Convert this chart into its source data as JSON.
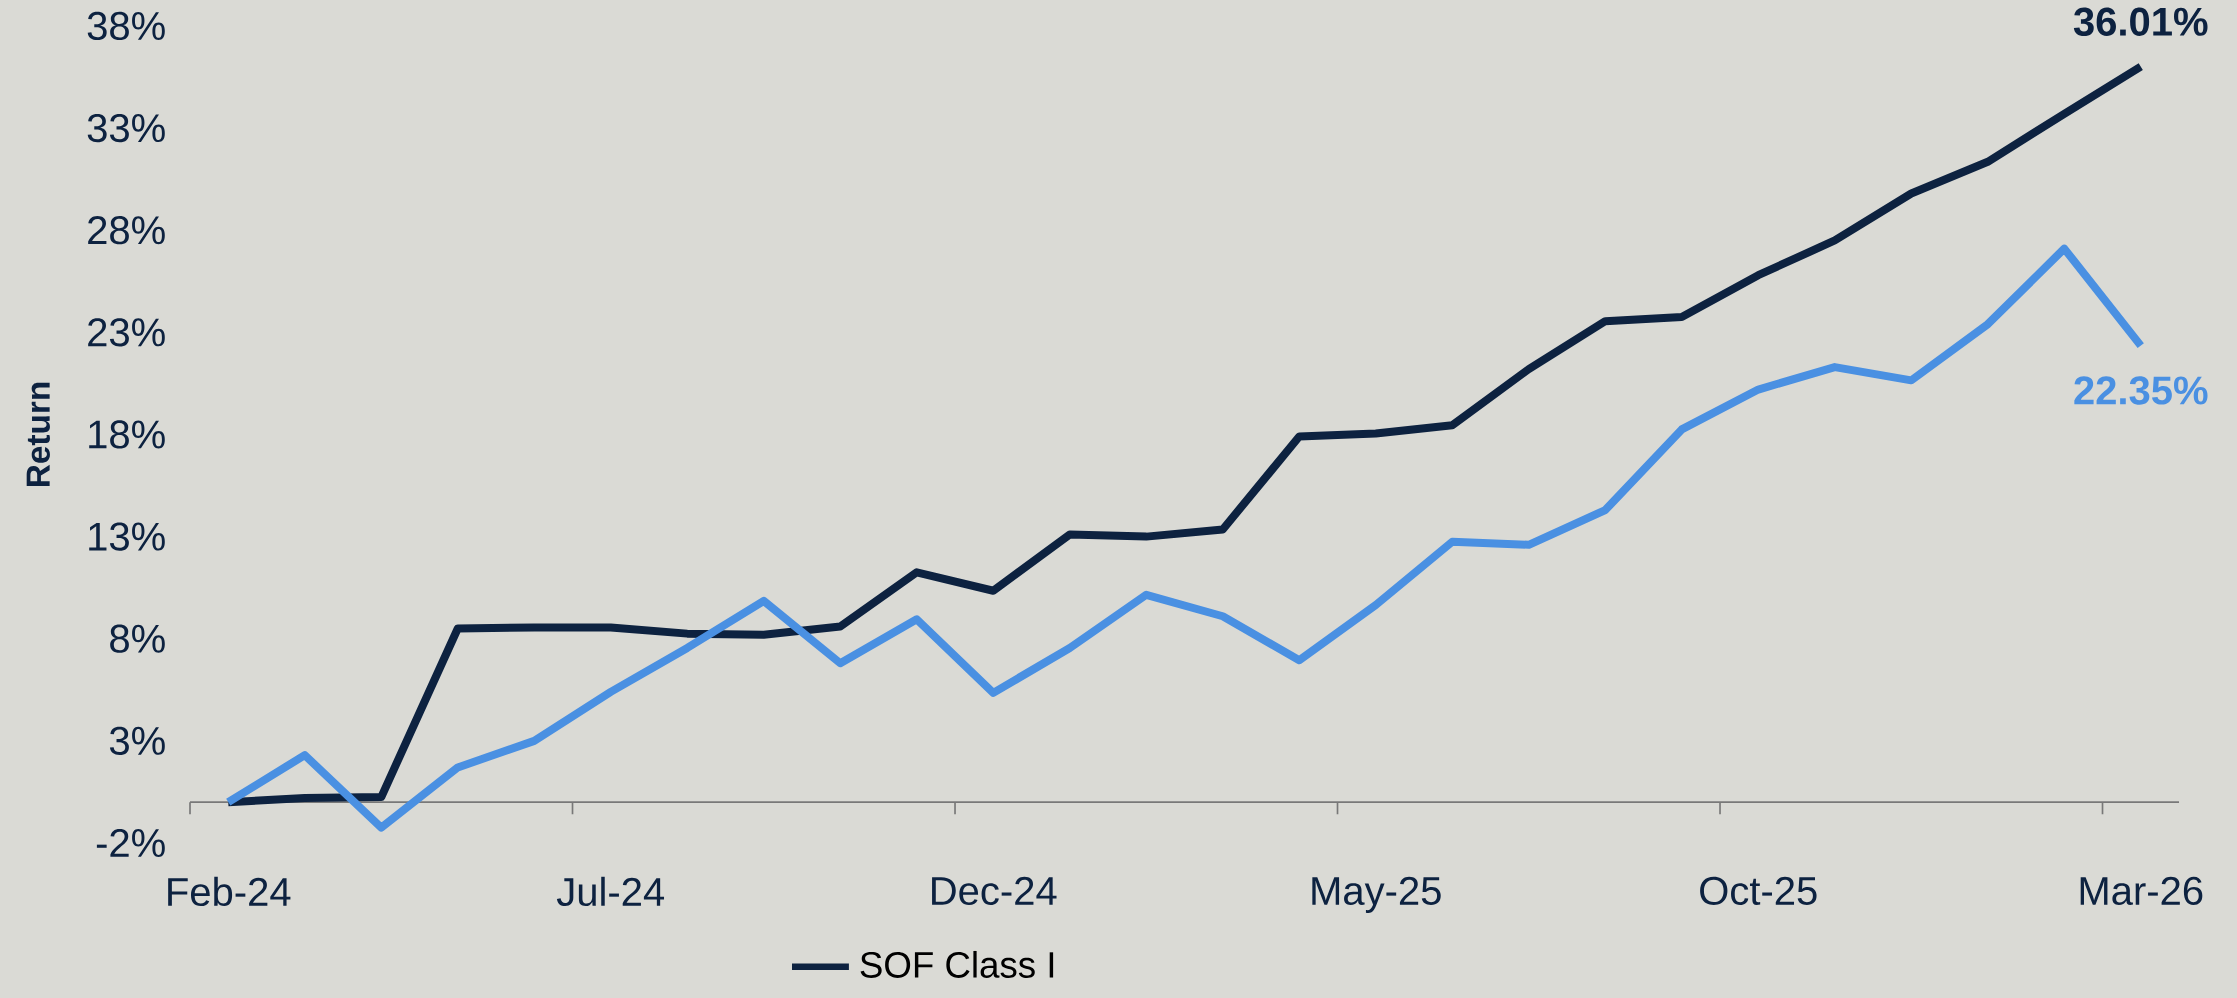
{
  "chart_data": {
    "type": "line",
    "ylabel": "Return",
    "categories": [
      "Feb-24",
      null,
      null,
      null,
      null,
      "Jul-24",
      null,
      null,
      null,
      null,
      "Dec-24",
      null,
      null,
      null,
      null,
      "May-25",
      null,
      null,
      null,
      null,
      "Oct-25",
      null,
      null,
      null,
      null,
      "Mar-26"
    ],
    "series": [
      {
        "name": "SOF Class I",
        "color": "#0d2240",
        "values": [
          0,
          0.2,
          0.25,
          8.5,
          8.55,
          8.55,
          8.25,
          8.2,
          8.6,
          11.25,
          10.35,
          13.1,
          13.0,
          13.35,
          17.9,
          18.05,
          18.45,
          21.2,
          23.55,
          23.75,
          25.8,
          27.5,
          29.8,
          31.35,
          33.7,
          36.01
        ],
        "value_labels": [
          null,
          null,
          null,
          null,
          null,
          null,
          null,
          null,
          null,
          null,
          null,
          null,
          null,
          null,
          null,
          null,
          null,
          null,
          null,
          null,
          null,
          null,
          null,
          null,
          null,
          "36.01%"
        ]
      },
      {
        "color": "#4a90e2",
        "values": [
          0,
          2.3,
          -1.25,
          1.7,
          3.0,
          5.4,
          7.55,
          9.85,
          6.8,
          8.95,
          5.35,
          7.55,
          10.15,
          9.1,
          6.95,
          9.65,
          12.75,
          12.6,
          14.3,
          18.25,
          20.2,
          21.3,
          20.65,
          23.4,
          27.1,
          22.35
        ],
        "value_labels": [
          null,
          null,
          null,
          null,
          null,
          null,
          null,
          null,
          null,
          null,
          null,
          null,
          null,
          null,
          null,
          null,
          null,
          null,
          null,
          null,
          null,
          null,
          null,
          null,
          null,
          "22.35%"
        ]
      }
    ],
    "ylim": [
      -2,
      38
    ],
    "yticks": [
      {
        "value": -2,
        "label": "-2%"
      },
      {
        "value": 3,
        "label": "3%"
      },
      {
        "value": 8,
        "label": "8%"
      },
      {
        "value": 13,
        "label": "13%"
      },
      {
        "value": 18,
        "label": "18%"
      },
      {
        "value": 23,
        "label": "23%"
      },
      {
        "value": 28,
        "label": "28%"
      },
      {
        "value": 33,
        "label": "33%"
      },
      {
        "value": 38,
        "label": "38%"
      }
    ],
    "grid": false,
    "legend": "bottom",
    "marker": "none",
    "line_style": "solid"
  }
}
